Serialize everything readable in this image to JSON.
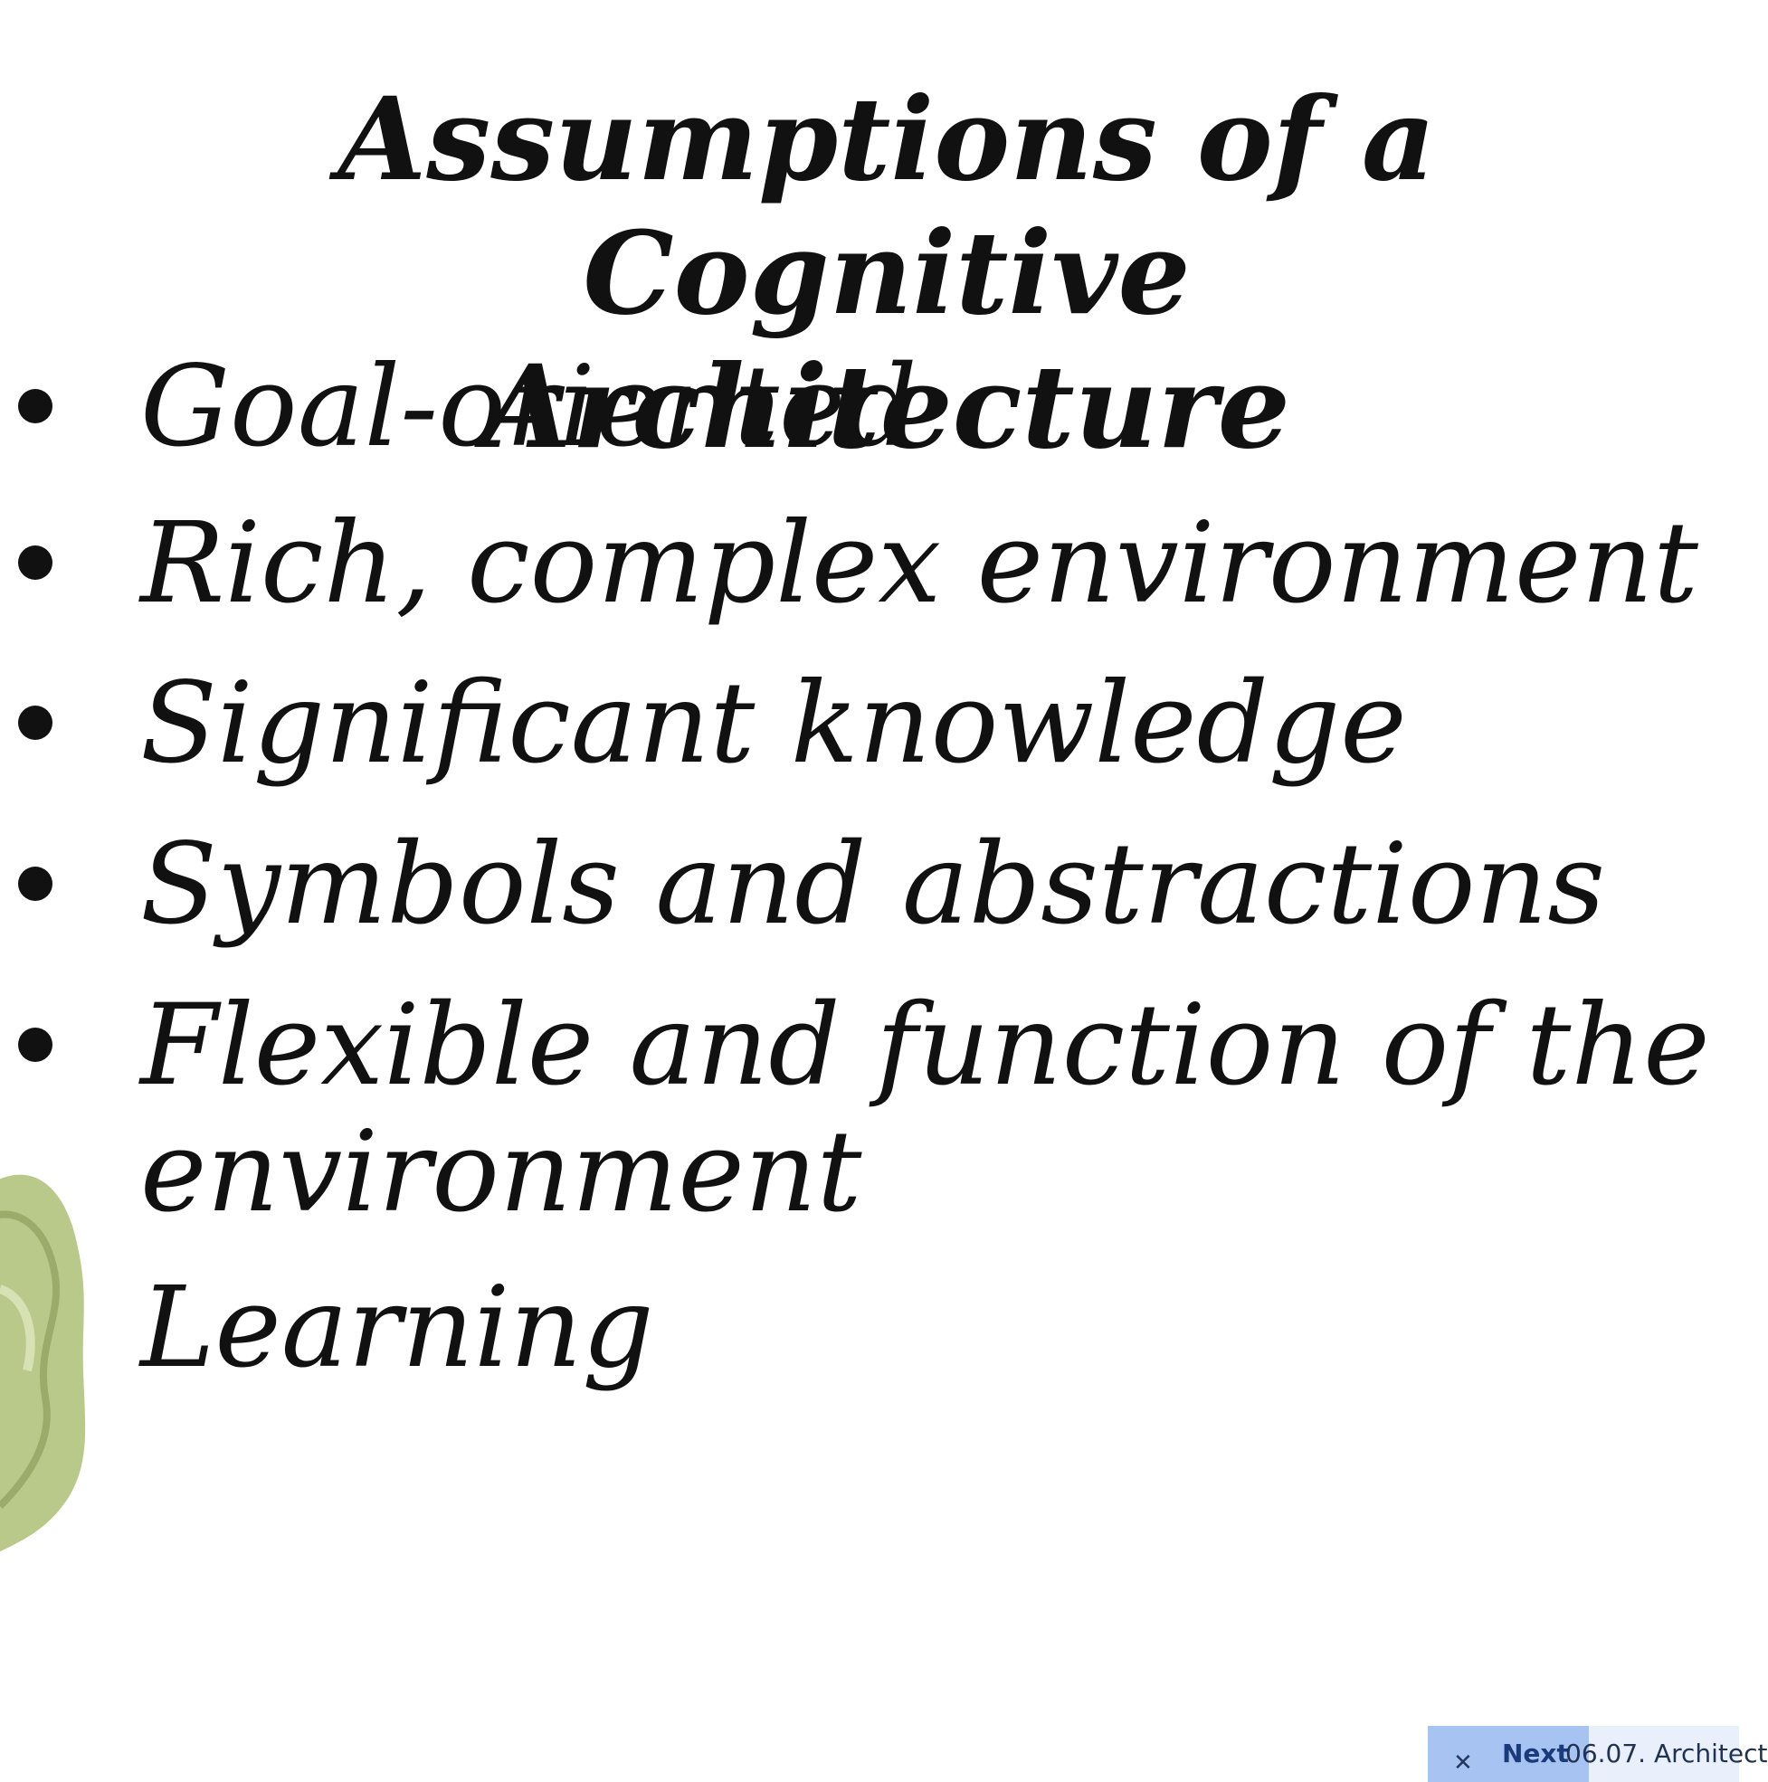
{
  "slide": {
    "title_line1": "Assumptions of a Cognitive",
    "title_line2": "Architecture",
    "bullets": [
      "Goal-oriented",
      "Rich, complex environment",
      "Significant knowledge",
      "Symbols and abstractions",
      "Flexible and function of the",
      "environment",
      "Learning"
    ]
  },
  "up_next": {
    "label": "Next",
    "title": "06.07. Architect",
    "close_icon": "close-icon"
  },
  "colors": {
    "text": "#111111",
    "next_bar_bg": "#eaf0fb",
    "next_close_bg": "#a7c3f1",
    "next_label": "#1a3a7c",
    "shape_green": "#b9c98a"
  }
}
